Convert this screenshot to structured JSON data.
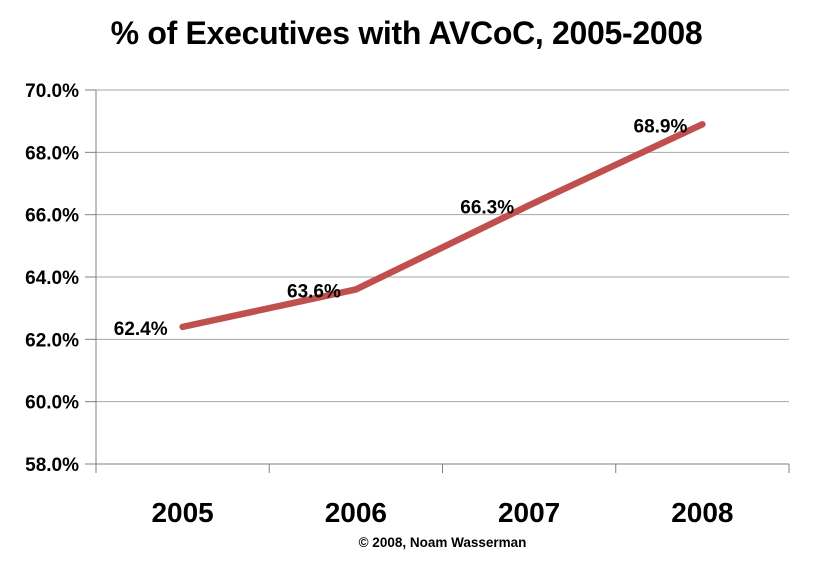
{
  "chart_data": {
    "type": "line",
    "title": "% of Executives with AVCoC, 2005-2008",
    "categories": [
      "2005",
      "2006",
      "2007",
      "2008"
    ],
    "series": [
      {
        "name": "% of Executives with AVCoC",
        "values": [
          62.4,
          63.6,
          66.3,
          68.9
        ],
        "data_labels": [
          "62.4%",
          "63.6%",
          "66.3%",
          "68.9%"
        ],
        "color": "#C0504D"
      }
    ],
    "xlabel": "",
    "ylabel": "",
    "ylim": [
      58.0,
      70.0
    ],
    "y_tick_step": 2.0,
    "y_tick_labels": [
      "58.0%",
      "60.0%",
      "62.0%",
      "64.0%",
      "66.0%",
      "68.0%",
      "70.0%"
    ],
    "grid": true,
    "legend": "none",
    "annotation": "© 2008, Noam Wasserman",
    "colors": {
      "line": "#C0504D",
      "gridline": "#A6A6A6",
      "axis": "#808080",
      "text": "#000000",
      "background": "#FFFFFF"
    }
  }
}
